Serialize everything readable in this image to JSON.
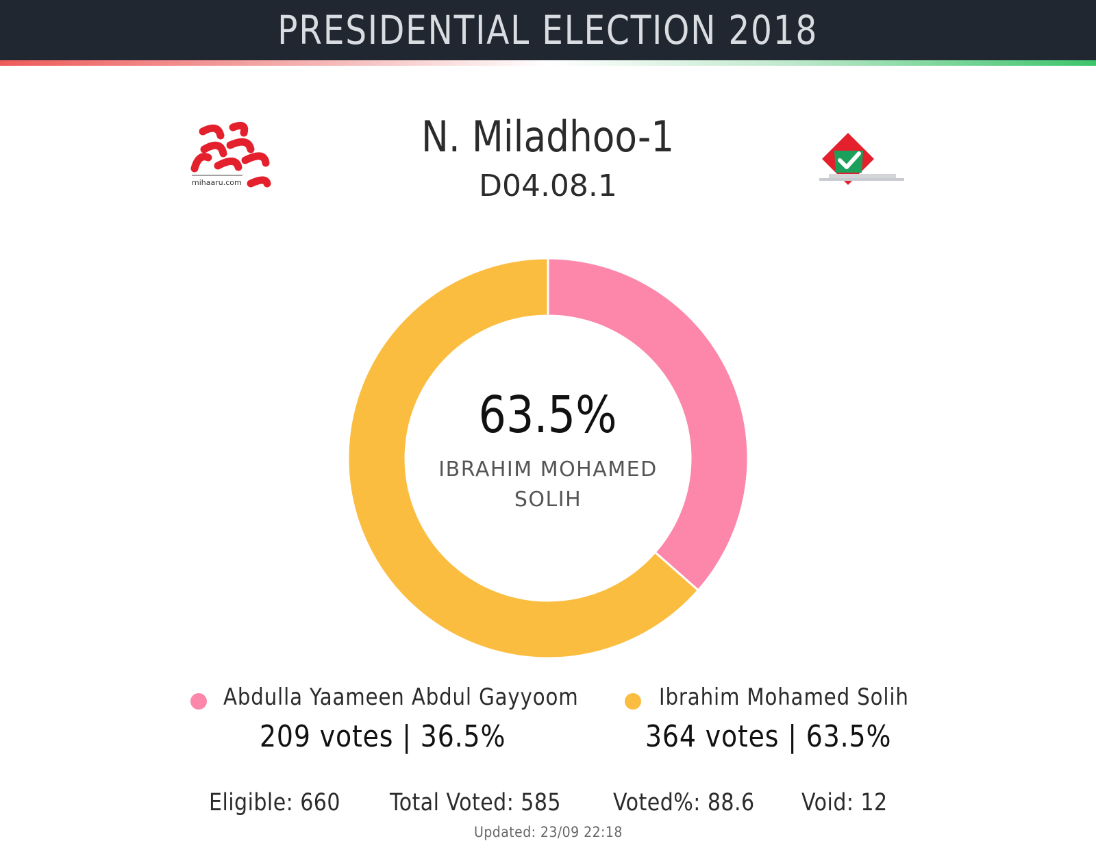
{
  "header": {
    "title": "PRESIDENTIAL ELECTION 2018"
  },
  "location": {
    "name": "N. Miladhoo-1",
    "code": "D04.08.1"
  },
  "logos": {
    "left_text": "mihaaru.com",
    "left_name": "mihaaru-logo",
    "right_name": "ballot-box-icon"
  },
  "center": {
    "percent": "63.5%",
    "winner": "IBRAHIM MOHAMED SOLIH"
  },
  "legend": [
    {
      "name": "Abdulla Yaameen Abdul Gayyoom",
      "stats": "209 votes | 36.5%",
      "color": "#fc87ab"
    },
    {
      "name": "Ibrahim Mohamed Solih",
      "stats": "364 votes | 63.5%",
      "color": "#fbbd40"
    }
  ],
  "stats": {
    "eligible": "Eligible: 660",
    "total_voted": "Total Voted: 585",
    "voted_pct": "Voted%: 88.6",
    "void": "Void: 12"
  },
  "updated": "Updated: 23/09 22:18",
  "chart_data": {
    "type": "pie",
    "style": "donut",
    "categories": [
      "Abdulla Yaameen Abdul Gayyoom",
      "Ibrahim Mohamed Solih"
    ],
    "values": [
      209,
      364
    ],
    "percentages": [
      36.5,
      63.5
    ],
    "colors": [
      "#fc87ab",
      "#fbbd40"
    ],
    "center_label": "63.5%",
    "legend": "bottom"
  }
}
